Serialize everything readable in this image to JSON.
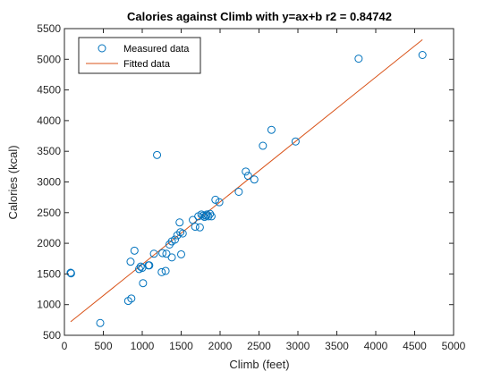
{
  "chart_data": {
    "type": "scatter",
    "title": "Calories against Climb with y=ax+b r2 = 0.84742",
    "xlabel": "Climb (feet)",
    "ylabel": "Calories (kcal)",
    "xlim": [
      0,
      5000
    ],
    "ylim": [
      500,
      5500
    ],
    "xticks": [
      0,
      500,
      1000,
      1500,
      2000,
      2500,
      3000,
      3500,
      4000,
      4500,
      5000
    ],
    "yticks": [
      500,
      1000,
      1500,
      2000,
      2500,
      3000,
      3500,
      4000,
      4500,
      5000,
      5500
    ],
    "grid": false,
    "legend_position": "top-left",
    "series": [
      {
        "name": "Measured data",
        "kind": "scatter",
        "marker": "open-circle",
        "color": "#0072bd",
        "points": [
          [
            80,
            1520
          ],
          [
            85,
            1510
          ],
          [
            460,
            700
          ],
          [
            820,
            1060
          ],
          [
            860,
            1100
          ],
          [
            850,
            1700
          ],
          [
            900,
            1880
          ],
          [
            960,
            1580
          ],
          [
            980,
            1620
          ],
          [
            1000,
            1600
          ],
          [
            1010,
            1350
          ],
          [
            1080,
            1640
          ],
          [
            1090,
            1640
          ],
          [
            1150,
            1830
          ],
          [
            1190,
            3440
          ],
          [
            1250,
            1530
          ],
          [
            1260,
            1840
          ],
          [
            1300,
            1550
          ],
          [
            1310,
            1830
          ],
          [
            1350,
            1980
          ],
          [
            1380,
            2030
          ],
          [
            1380,
            1770
          ],
          [
            1420,
            2060
          ],
          [
            1450,
            2130
          ],
          [
            1480,
            2340
          ],
          [
            1490,
            2180
          ],
          [
            1500,
            1820
          ],
          [
            1520,
            2160
          ],
          [
            1650,
            2380
          ],
          [
            1680,
            2270
          ],
          [
            1720,
            2440
          ],
          [
            1740,
            2260
          ],
          [
            1760,
            2470
          ],
          [
            1780,
            2450
          ],
          [
            1800,
            2430
          ],
          [
            1820,
            2450
          ],
          [
            1830,
            2470
          ],
          [
            1850,
            2440
          ],
          [
            1870,
            2480
          ],
          [
            1890,
            2440
          ],
          [
            1940,
            2710
          ],
          [
            1990,
            2670
          ],
          [
            2240,
            2840
          ],
          [
            2330,
            3170
          ],
          [
            2360,
            3100
          ],
          [
            2440,
            3040
          ],
          [
            2550,
            3590
          ],
          [
            2660,
            3850
          ],
          [
            2970,
            3660
          ],
          [
            3780,
            5010
          ],
          [
            4600,
            5070
          ]
        ]
      },
      {
        "name": "Fitted data",
        "kind": "line",
        "color": "#d95319",
        "x": [
          80,
          4600
        ],
        "y": [
          720,
          5320
        ]
      }
    ]
  }
}
